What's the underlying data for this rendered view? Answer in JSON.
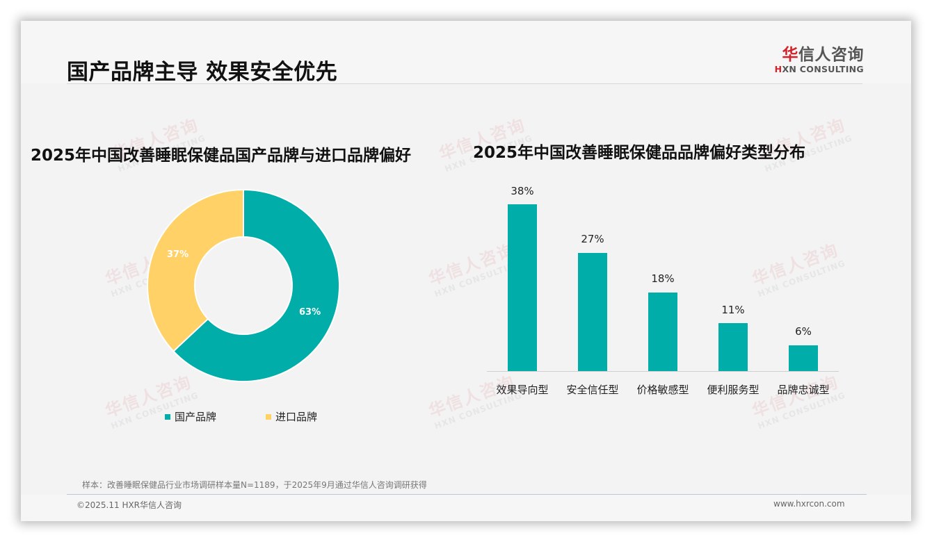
{
  "header": {
    "title": "国产品牌主导 效果安全优先",
    "logo_cn_red": "华",
    "logo_cn_rest": "信人咨询",
    "logo_en_mark": "H",
    "logo_en_rest": "XN CONSULTING"
  },
  "watermark": {
    "cn": "华信人咨询",
    "en": "HXN CONSULTING"
  },
  "colors": {
    "teal": "#00ada9",
    "yellow": "#ffd166",
    "brand_red": "#d3232a"
  },
  "chart_data": [
    {
      "type": "pie",
      "variant": "donut",
      "title": "2025年中国改善睡眠保健品国产品牌与进口品牌偏好",
      "categories": [
        "国产品牌",
        "进口品牌"
      ],
      "values": [
        63,
        37
      ],
      "labels": [
        "63%",
        "37%"
      ],
      "colors": [
        "#00ada9",
        "#ffd166"
      ],
      "legend_position": "bottom"
    },
    {
      "type": "bar",
      "title": "2025年中国改善睡眠保健品品牌偏好类型分布",
      "categories": [
        "效果导向型",
        "安全信任型",
        "价格敏感型",
        "便利服务型",
        "品牌忠诚型"
      ],
      "values": [
        38,
        27,
        18,
        11,
        6
      ],
      "labels": [
        "38%",
        "27%",
        "18%",
        "11%",
        "6%"
      ],
      "color": "#00ada9",
      "xlabel": "",
      "ylabel": "",
      "grid": false,
      "ylim": [
        0,
        40
      ]
    }
  ],
  "legend": {
    "items": [
      {
        "label": "国产品牌",
        "color": "#00ada9"
      },
      {
        "label": "进口品牌",
        "color": "#ffd166"
      }
    ]
  },
  "footer": {
    "note": "样本：改善睡眠保健品行业市场调研样本量N=1189，于2025年9月通过华信人咨询调研获得",
    "copyright": "©2025.11 HXR华信人咨询",
    "website": "www.hxrcon.com"
  }
}
